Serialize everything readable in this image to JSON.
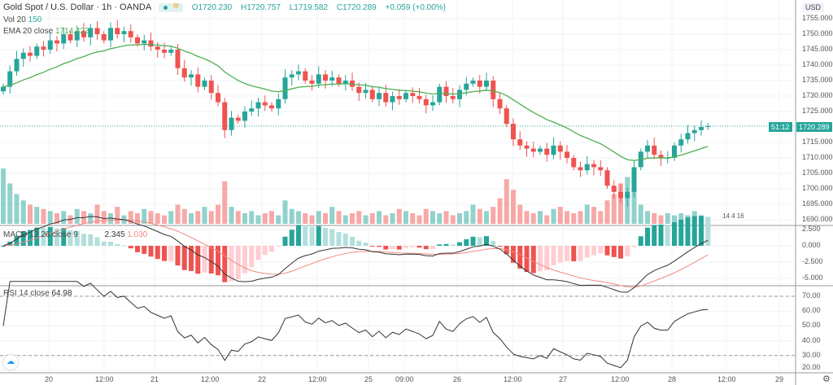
{
  "header": {
    "title": "Gold Spot / U.S. Dollar · 1h · OANDA",
    "open": "O1720.230",
    "high": "H1720.757",
    "low": "L1719.582",
    "close": "C1720.289",
    "change": "+0.059 (+0.00%)",
    "vol_label": "Vol 20",
    "vol_value": "150",
    "ema_label": "EMA 20 close",
    "ema_value": "1714.423"
  },
  "macd_legend": {
    "label": "MACD 12 26 close 9",
    "macd": "2.345",
    "signal": "1.030"
  },
  "rsi_legend": {
    "label": "RSI 14 close",
    "value": "64.98"
  },
  "price_axis": {
    "currency": "USD",
    "ticks": [
      "1755.000",
      "1750.000",
      "1745.000",
      "1740.000",
      "1735.000",
      "1730.000",
      "1725.000",
      "1715.000",
      "1710.000",
      "1705.000",
      "1700.000",
      "1695.000",
      "1690.000"
    ],
    "last_price": "1720.289",
    "countdown": "51:12"
  },
  "macd_axis": {
    "ticks": [
      "2.500",
      "0.000",
      "-2.500",
      "-5.000"
    ]
  },
  "rsi_axis": {
    "ticks": [
      "70.00",
      "60.00",
      "50.00",
      "40.00",
      "30.00",
      "20.00"
    ]
  },
  "time_axis": {
    "labels": [
      "20",
      "12:00",
      "21",
      "12:00",
      "22",
      "12:00",
      "25",
      "09:00",
      "26",
      "12:00",
      "27",
      "12:00",
      "28",
      "12:00",
      "29"
    ]
  },
  "events": {
    "label": "14 4 16"
  },
  "colors": {
    "up": "#26a69a",
    "down": "#ef5350",
    "ema": "#4caf50",
    "macd": "#333333",
    "signal": "#f08a7e",
    "rsi": "#333333"
  },
  "chart_data": {
    "type": "candlestick",
    "symbol": "XAUUSD",
    "interval": "1h",
    "ylim": [
      1688,
      1757
    ],
    "closes": [
      1733,
      1738,
      1742,
      1744,
      1743,
      1746,
      1745,
      1748,
      1747,
      1750,
      1748,
      1751,
      1749,
      1752,
      1750,
      1748,
      1752,
      1750,
      1751,
      1749,
      1747,
      1748,
      1746,
      1745,
      1744,
      1745,
      1739,
      1736,
      1737,
      1733,
      1735,
      1731,
      1728,
      1719,
      1723,
      1722,
      1725,
      1726,
      1728,
      1727,
      1726,
      1729,
      1736,
      1737,
      1738,
      1735,
      1734,
      1737,
      1735,
      1736,
      1734,
      1735,
      1733,
      1731,
      1732,
      1729,
      1731,
      1728,
      1730,
      1729,
      1731,
      1730,
      1729,
      1727,
      1728,
      1733,
      1730,
      1729,
      1732,
      1734,
      1735,
      1733,
      1735,
      1729,
      1726,
      1721,
      1716,
      1714,
      1713,
      1712,
      1713,
      1711,
      1714,
      1712,
      1710,
      1707,
      1706,
      1708,
      1707,
      1706,
      1701,
      1699,
      1697,
      1699,
      1707,
      1712,
      1714,
      1711,
      1710,
      1710,
      1714,
      1716,
      1718,
      1719,
      1720,
      1720.289
    ],
    "volumes": [
      130,
      95,
      70,
      55,
      45,
      40,
      35,
      30,
      25,
      30,
      20,
      35,
      30,
      25,
      45,
      30,
      25,
      40,
      20,
      30,
      25,
      35,
      30,
      25,
      20,
      30,
      45,
      35,
      25,
      30,
      40,
      30,
      45,
      100,
      40,
      30,
      25,
      30,
      20,
      25,
      30,
      20,
      55,
      35,
      30,
      25,
      20,
      30,
      25,
      40,
      30,
      20,
      25,
      30,
      20,
      25,
      30,
      20,
      25,
      35,
      30,
      25,
      20,
      35,
      30,
      25,
      30,
      20,
      25,
      30,
      45,
      35,
      30,
      40,
      60,
      105,
      80,
      45,
      30,
      25,
      30,
      20,
      35,
      40,
      30,
      25,
      30,
      45,
      40,
      30,
      55,
      70,
      95,
      110,
      80,
      45,
      30,
      25,
      20,
      25,
      20,
      25,
      20,
      30,
      20,
      12
    ]
  }
}
